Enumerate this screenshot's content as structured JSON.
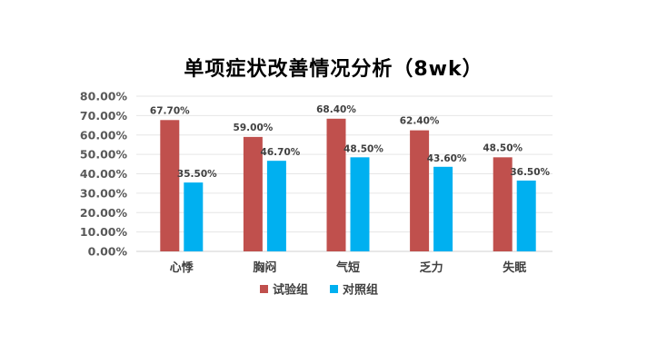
{
  "chart_data": {
    "type": "bar",
    "title": "单项症状改善情况分析（8wk）",
    "categories": [
      "心悸",
      "胸闷",
      "气短",
      "乏力",
      "失眠"
    ],
    "series": [
      {
        "name": "试验组",
        "values": [
          67.7,
          59.0,
          68.4,
          62.4,
          48.5
        ],
        "labels": [
          "67.70%",
          "59.00%",
          "68.40%",
          "62.40%",
          "48.50%"
        ],
        "color": "#C0504D"
      },
      {
        "name": "对照组",
        "values": [
          35.5,
          46.7,
          48.5,
          43.6,
          36.5
        ],
        "labels": [
          "35.50%",
          "46.70%",
          "48.50%",
          "43.60%",
          "36.50%"
        ],
        "color": "#00B0F0"
      }
    ],
    "yticks": [
      "0.00%",
      "10.00%",
      "20.00%",
      "30.00%",
      "40.00%",
      "50.00%",
      "60.00%",
      "70.00%",
      "80.00%"
    ],
    "ylim": [
      0,
      80
    ],
    "grid": true,
    "legend": "bottom"
  }
}
